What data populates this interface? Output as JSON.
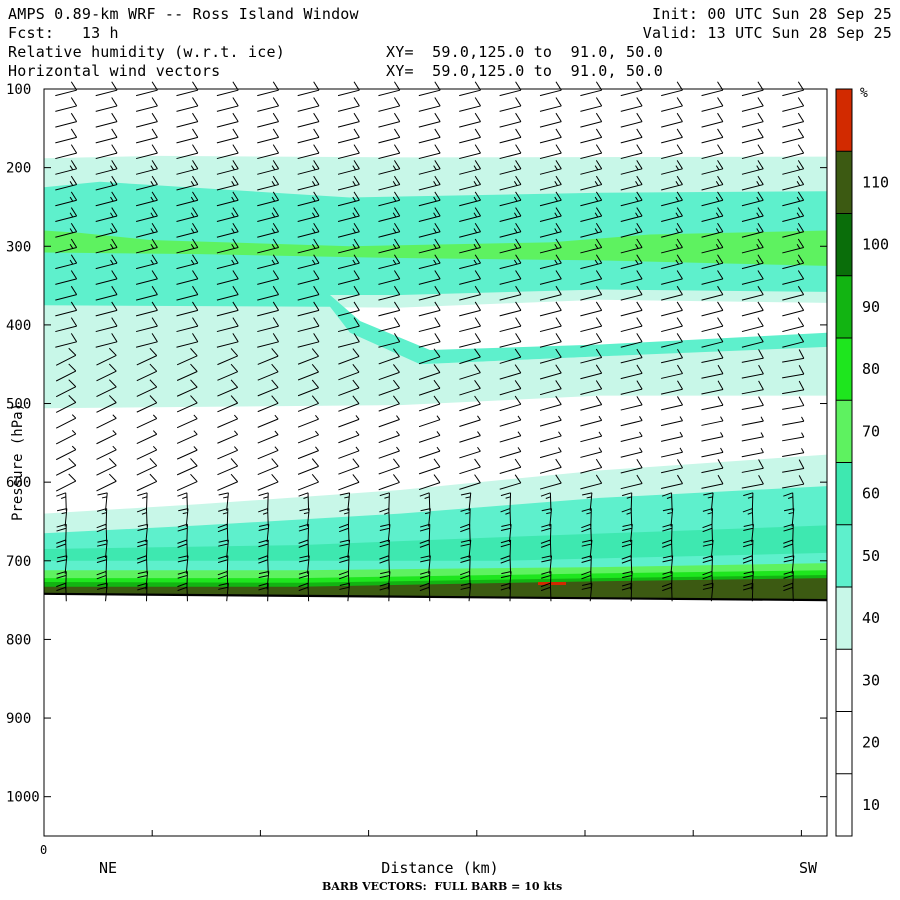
{
  "header": {
    "title": "AMPS 0.89-km WRF -- Ross Island Window",
    "init": "Init: 00 UTC Sun 28 Sep 25",
    "fcst": "Fcst:   13 h",
    "valid": "Valid: 13 UTC Sun 28 Sep 25",
    "field1": "Relative humidity (w.r.t. ice)",
    "xy1": "XY=  59.0,125.0 to  91.0, 50.0",
    "field2": "Horizontal wind vectors",
    "xy2": "XY=  59.0,125.0 to  91.0, 50.0"
  },
  "footer": "BARB VECTORS:  FULL BARB = 10 kts",
  "colors": {
    "c30_40": "#c8f7e8",
    "c40_50": "#5ef0cc",
    "c50_60": "#3ee8b0",
    "c60_70": "#5ef260",
    "c70_80": "#1ee61e",
    "c80_90": "#12b412",
    "c90_100": "#0a6e0a",
    "c100_110": "#3c5a12",
    "c110plus": "#d22a00",
    "ground": "#000000"
  },
  "chart_data": {
    "type": "cross-section contour",
    "xlabel": "Distance (km)",
    "ylabel": "Pressure (hPa)",
    "x_left_label": "NE",
    "x_right_label": "SW",
    "x_origin_label": "0",
    "ylim": [
      1050,
      100
    ],
    "yticks": [
      100,
      200,
      300,
      400,
      500,
      600,
      700,
      800,
      900,
      1000
    ],
    "colorbar": {
      "unit": "%",
      "levels": [
        10,
        20,
        30,
        40,
        50,
        60,
        70,
        80,
        90,
        100,
        110
      ],
      "colors": [
        "#ffffff",
        "#ffffff",
        "#ffffff",
        "#c8f7e8",
        "#5ef0cc",
        "#3ee8b0",
        "#5ef260",
        "#1ee61e",
        "#12b412",
        "#0a6e0a",
        "#3c5a12",
        "#d22a00"
      ]
    },
    "surface_pressure_hPa": {
      "left": 742,
      "right": 750
    },
    "rh_layers": [
      {
        "name": "upper-pale",
        "top_hPa": 188,
        "bottom_left_hPa": 375,
        "bottom_right_hPa": 372,
        "color": "#c8f7e8"
      },
      {
        "name": "upper-cyan",
        "top_hPa": 218,
        "bottom_left_hPa": 362,
        "bottom_right_hPa": 358,
        "color": "#5ef0cc"
      },
      {
        "name": "upper-green",
        "top_hPa": 282,
        "bottom_left_hPa": 305,
        "bottom_right_hPa": 325,
        "color": "#5ef260"
      },
      {
        "name": "mid-pale",
        "top_hPa": 400,
        "bottom_left_hPa": 505,
        "bottom_right_hPa": 490,
        "color": "#c8f7e8"
      },
      {
        "name": "low-pale",
        "top_left_hPa": 640,
        "top_right_hPa": 565,
        "color": "#c8f7e8"
      },
      {
        "name": "low-cyan",
        "top_left_hPa": 665,
        "top_right_hPa": 610,
        "color": "#5ef0cc"
      },
      {
        "name": "low-green",
        "top_left_hPa": 715,
        "top_right_hPa": 705,
        "color": "#5ef260"
      },
      {
        "name": "surface-dark",
        "top_left_hPa": 732,
        "top_right_hPa": 718,
        "color": "#3c5a12"
      }
    ],
    "wind_barb_columns": 19,
    "wind_barb_levels_hPa": [
      105,
      125,
      145,
      165,
      185,
      205,
      225,
      245,
      265,
      285,
      305,
      325,
      345,
      365,
      385,
      405,
      425,
      445,
      465,
      485,
      505,
      525,
      545,
      565,
      585,
      605,
      625,
      645,
      665,
      685,
      705,
      725,
      740
    ],
    "wind_speed_kt_by_level": [
      12,
      12,
      12,
      12,
      14,
      15,
      15,
      15,
      15,
      15,
      15,
      15,
      14,
      14,
      14,
      12,
      12,
      12,
      10,
      10,
      10,
      8,
      8,
      8,
      10,
      12,
      15,
      18,
      20,
      20,
      20,
      20,
      22
    ]
  }
}
